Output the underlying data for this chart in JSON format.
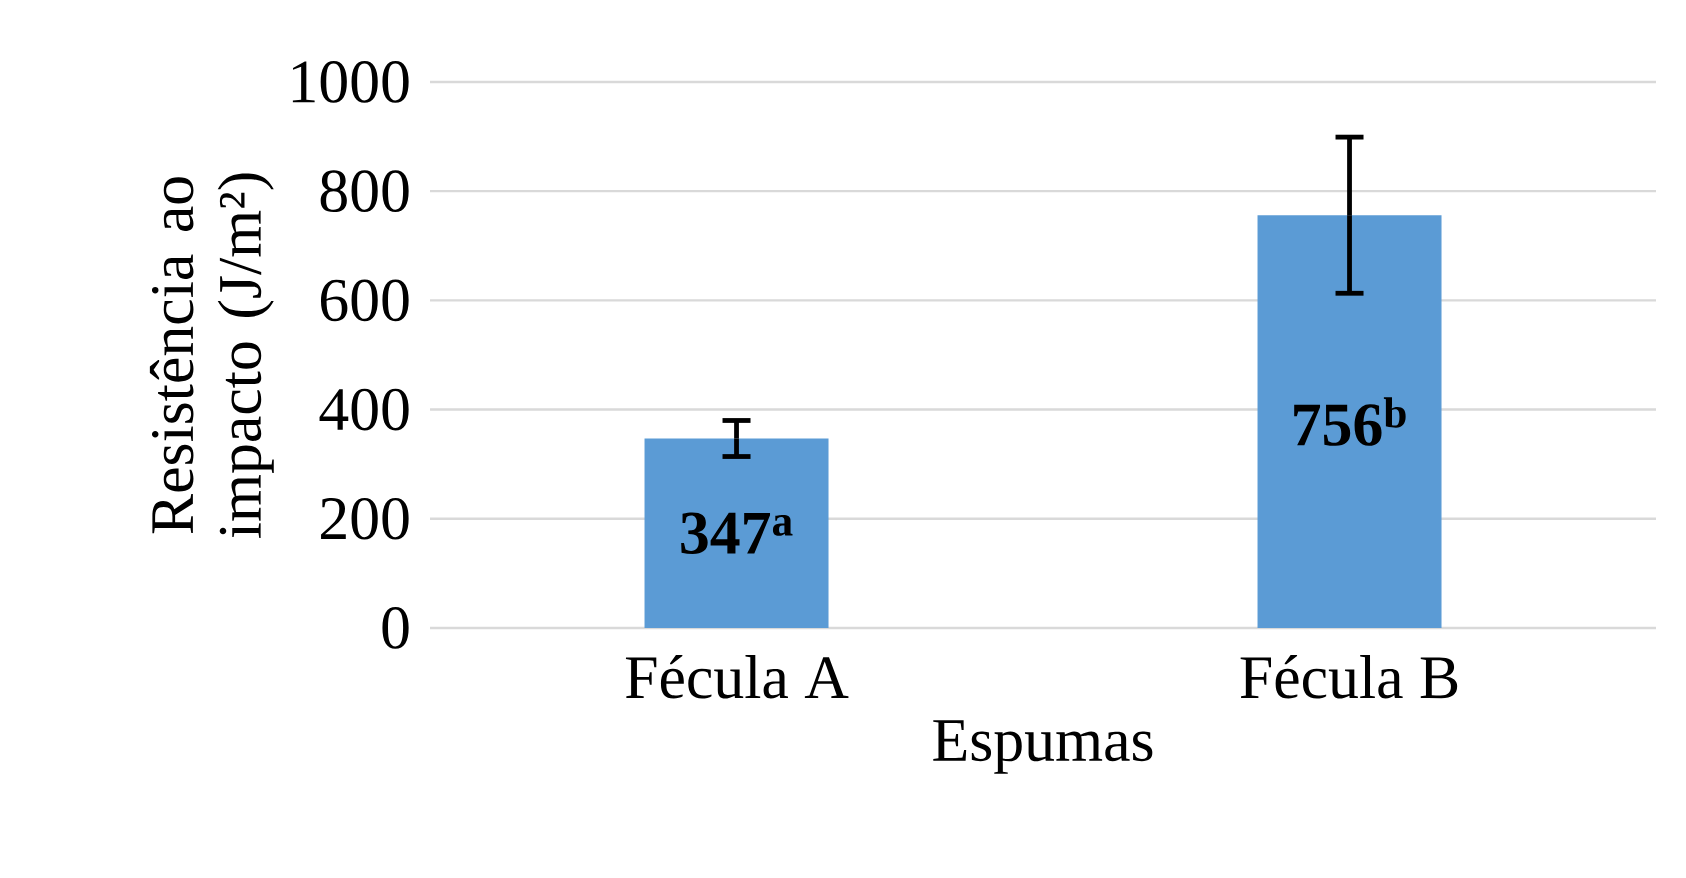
{
  "chart_data": {
    "type": "bar",
    "categories": [
      "Fécula A",
      "Fécula B"
    ],
    "values": [
      347,
      756
    ],
    "errors": [
      33,
      143
    ],
    "value_labels": [
      "347$^{a}$",
      "756$^{b}$"
    ],
    "color": "#5b9bd5",
    "xlabel": "Espumas",
    "ylabel": "Resistência ao impacto (J/m²)",
    "ylim": [
      0,
      1000
    ],
    "yticks": [
      0,
      200,
      400,
      600,
      800,
      1000
    ],
    "grid": "y"
  }
}
